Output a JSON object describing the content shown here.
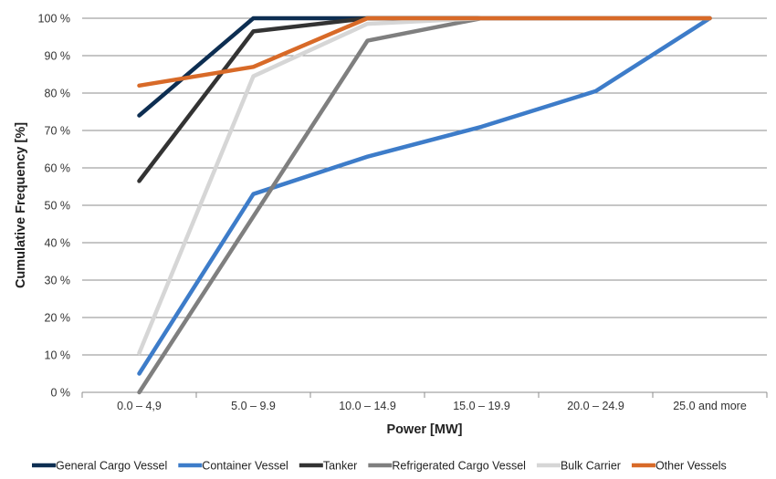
{
  "chart_data": {
    "type": "line",
    "title": "",
    "xlabel": "Power [MW]",
    "ylabel": "Cumulative Frequency [%]",
    "categories": [
      "0.0 – 4,9",
      "5.0 – 9.9",
      "10.0 – 14.9",
      "15.0 – 19.9",
      "20.0 – 24.9",
      "25.0 and more"
    ],
    "ylim": [
      0,
      100
    ],
    "yticks": [
      "0 %",
      "10 %",
      "20 %",
      "30 %",
      "40 %",
      "50 %",
      "60 %",
      "70 %",
      "80 %",
      "90 %",
      "100 %"
    ],
    "grid": "horizontal",
    "legend_position": "bottom",
    "series": [
      {
        "name": "General Cargo Vessel",
        "color": "#0d2e52",
        "values": [
          74,
          100,
          100,
          100,
          100,
          100
        ]
      },
      {
        "name": "Container Vessel",
        "color": "#3d7cc9",
        "values": [
          5,
          53,
          63,
          71,
          80.5,
          100
        ]
      },
      {
        "name": "Tanker",
        "color": "#333333",
        "values": [
          56.5,
          96.5,
          100,
          100,
          100,
          100
        ]
      },
      {
        "name": "Refrigerated Cargo Vessel",
        "color": "#7f7f7f",
        "values": [
          0,
          47,
          94,
          100,
          100,
          100
        ]
      },
      {
        "name": "Bulk Carrier",
        "color": "#d6d6d6",
        "values": [
          10.5,
          84.5,
          98.5,
          100,
          100,
          100
        ]
      },
      {
        "name": "Other Vessels",
        "color": "#d86a28",
        "values": [
          82,
          87,
          100,
          100,
          100,
          100
        ]
      }
    ]
  }
}
